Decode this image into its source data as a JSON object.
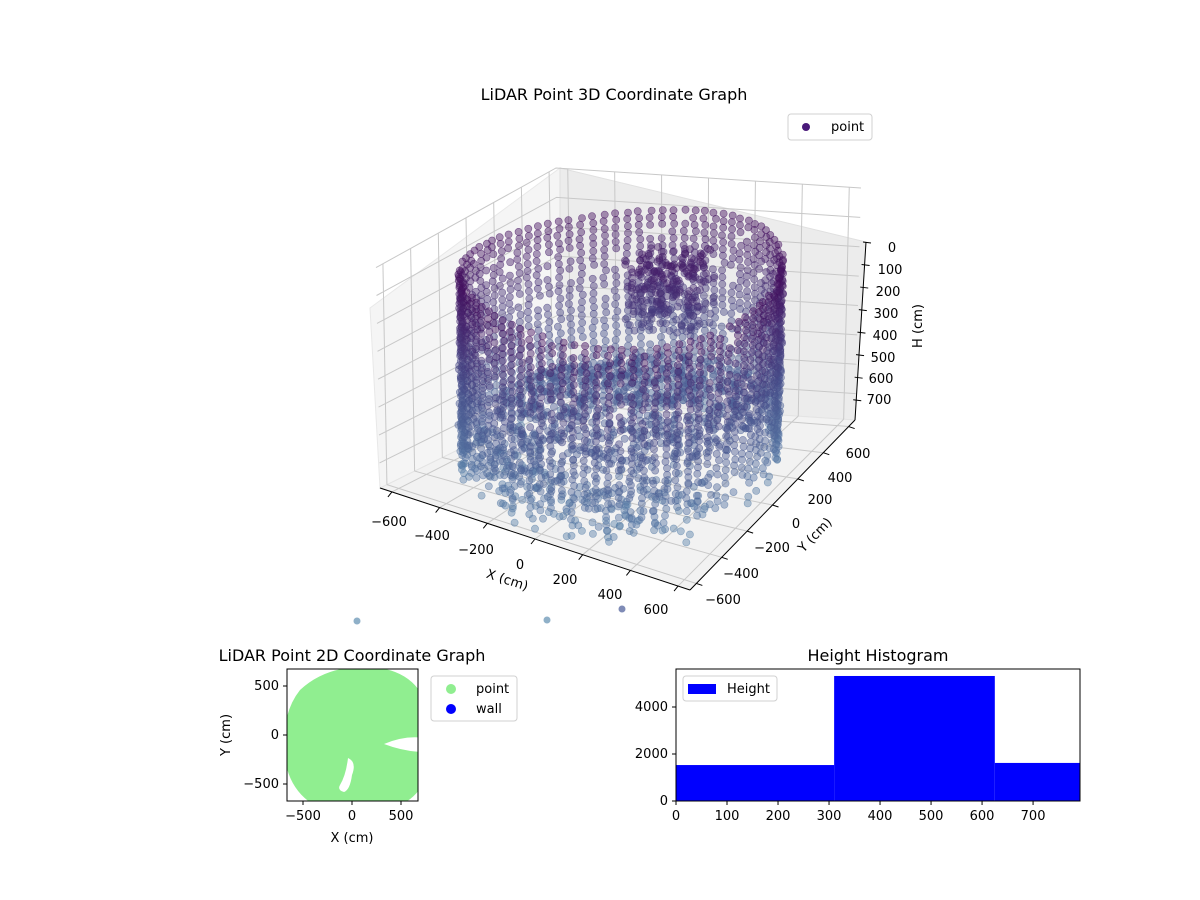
{
  "colors": {
    "point_dark": "#440154",
    "point_mid": "#3b4d8f",
    "point_light": "#5f8fb0",
    "scatter2d_point": "#90ee90",
    "scatter2d_wall": "#0000ff",
    "hist_bar": "#0000ff",
    "pane_left": "#f5f5f5",
    "pane_right": "#ececec",
    "pane_floor": "#f2f2f2",
    "grid": "#c8c8c8"
  },
  "chart_data": [
    {
      "type": "scatter",
      "projection": "3d",
      "title": "LiDAR Point 3D Coordinate Graph",
      "xlabel": "X (cm)",
      "ylabel": "Y (cm)",
      "zlabel": "H (cm)",
      "x_ticks": [
        "−600",
        "−400",
        "−200",
        "0",
        "200",
        "400",
        "600"
      ],
      "y_ticks": [
        "−600",
        "−400",
        "−200",
        "0",
        "200",
        "400",
        "600"
      ],
      "z_ticks": [
        "0",
        "100",
        "200",
        "300",
        "400",
        "500",
        "600",
        "700"
      ],
      "xlim": [
        -650,
        650
      ],
      "ylim": [
        -650,
        650
      ],
      "zlim": [
        0,
        790
      ],
      "z_inverted": true,
      "legend": [
        {
          "label": "point",
          "marker": "circle"
        }
      ],
      "legend_position": "upper right",
      "grid": true,
      "description": "Cylindrical wall of points (radius ~600 cm) spanning heights ~0-790 cm, dense floor/ceiling disc near H~600, cluster of dark points near top center"
    },
    {
      "type": "scatter",
      "title": "LiDAR Point 2D Coordinate Graph",
      "xlabel": "X (cm)",
      "ylabel": "Y (cm)",
      "x_ticks": [
        "−500",
        "0",
        "500"
      ],
      "y_ticks": [
        "500",
        "0",
        "−500"
      ],
      "xlim": [
        -670,
        670
      ],
      "ylim": [
        -670,
        670
      ],
      "legend": [
        {
          "label": "point",
          "color": "#90ee90"
        },
        {
          "label": "wall",
          "color": "#0000ff"
        }
      ],
      "legend_position": "outside upper right",
      "description": "Filled near-circular region of points (radius ~620 cm) with notch gaps near (450,0) and (-150,-450)"
    },
    {
      "type": "bar",
      "subtype": "histogram",
      "title": "Height Histogram",
      "xlabel": "",
      "ylabel": "",
      "bins": [
        [
          0,
          310
        ],
        [
          310,
          625
        ],
        [
          625,
          792
        ]
      ],
      "values": [
        1530,
        5320,
        1620
      ],
      "legend": [
        {
          "label": "Height",
          "color": "#0000ff"
        }
      ],
      "legend_position": "upper left",
      "x_ticks": [
        "0",
        "100",
        "200",
        "300",
        "400",
        "500",
        "600",
        "700"
      ],
      "y_ticks": [
        "0",
        "2000",
        "4000"
      ],
      "xlim": [
        0,
        792
      ],
      "ylim": [
        0,
        5600
      ],
      "grid": false
    }
  ]
}
